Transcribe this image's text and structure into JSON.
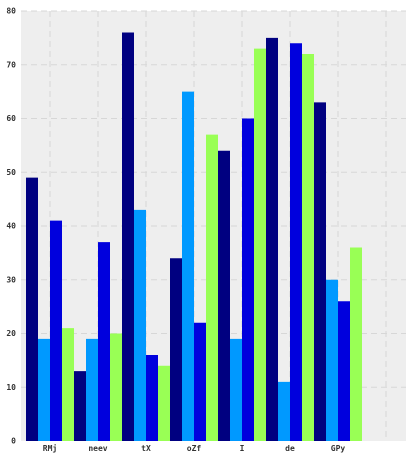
{
  "chart_data": {
    "type": "bar",
    "title": "",
    "xlabel": "",
    "ylabel": "",
    "ylim": [
      0,
      80
    ],
    "grid": true,
    "background": "#eeeeee",
    "categories": [
      "RMj",
      "neev",
      "tX",
      "oZf",
      "I",
      "de",
      "GPy"
    ],
    "y_ticks": [
      "0",
      "10",
      "20",
      "30",
      "40",
      "50",
      "60",
      "70",
      "80"
    ],
    "series": [
      {
        "color": "#000080",
        "values": [
          49,
          13,
          76,
          34,
          54,
          75,
          63
        ]
      },
      {
        "color": "#0099ff",
        "values": [
          19,
          19,
          43,
          65,
          19,
          11,
          30
        ]
      },
      {
        "color": "#0000dd",
        "values": [
          41,
          37,
          16,
          22,
          60,
          74,
          26
        ]
      },
      {
        "color": "#99ff55",
        "values": [
          21,
          20,
          14,
          57,
          73,
          72,
          36
        ]
      }
    ]
  }
}
